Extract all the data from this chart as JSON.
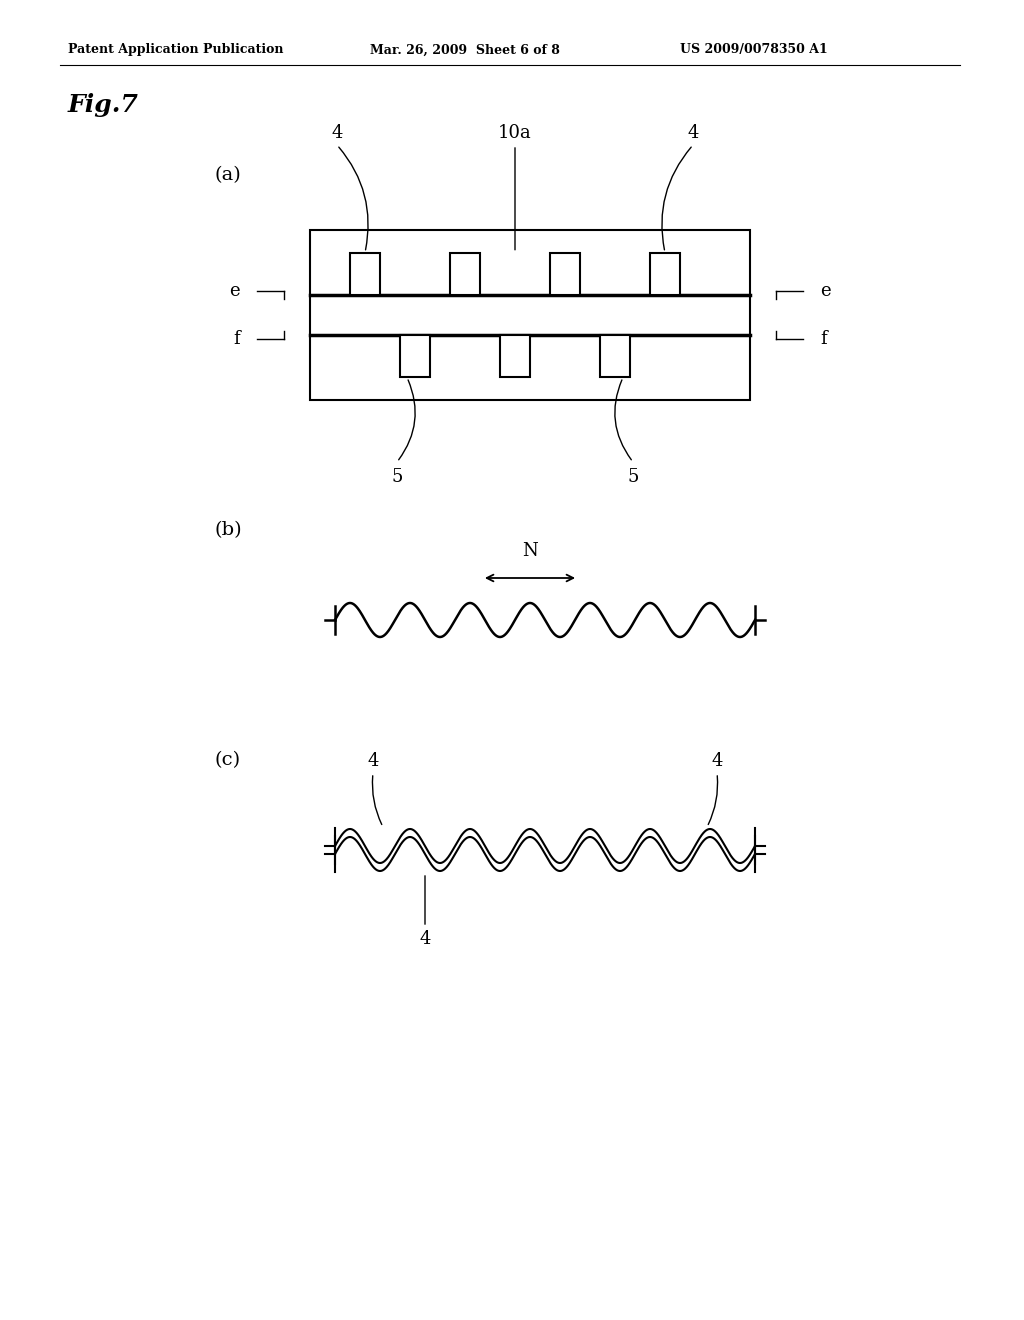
{
  "background_color": "#ffffff",
  "header_left": "Patent Application Publication",
  "header_mid": "Mar. 26, 2009  Sheet 6 of 8",
  "header_right": "US 2009/0078350 A1",
  "fig_label": "Fig.7",
  "panel_a_label": "(a)",
  "panel_b_label": "(b)",
  "panel_c_label": "(c)"
}
